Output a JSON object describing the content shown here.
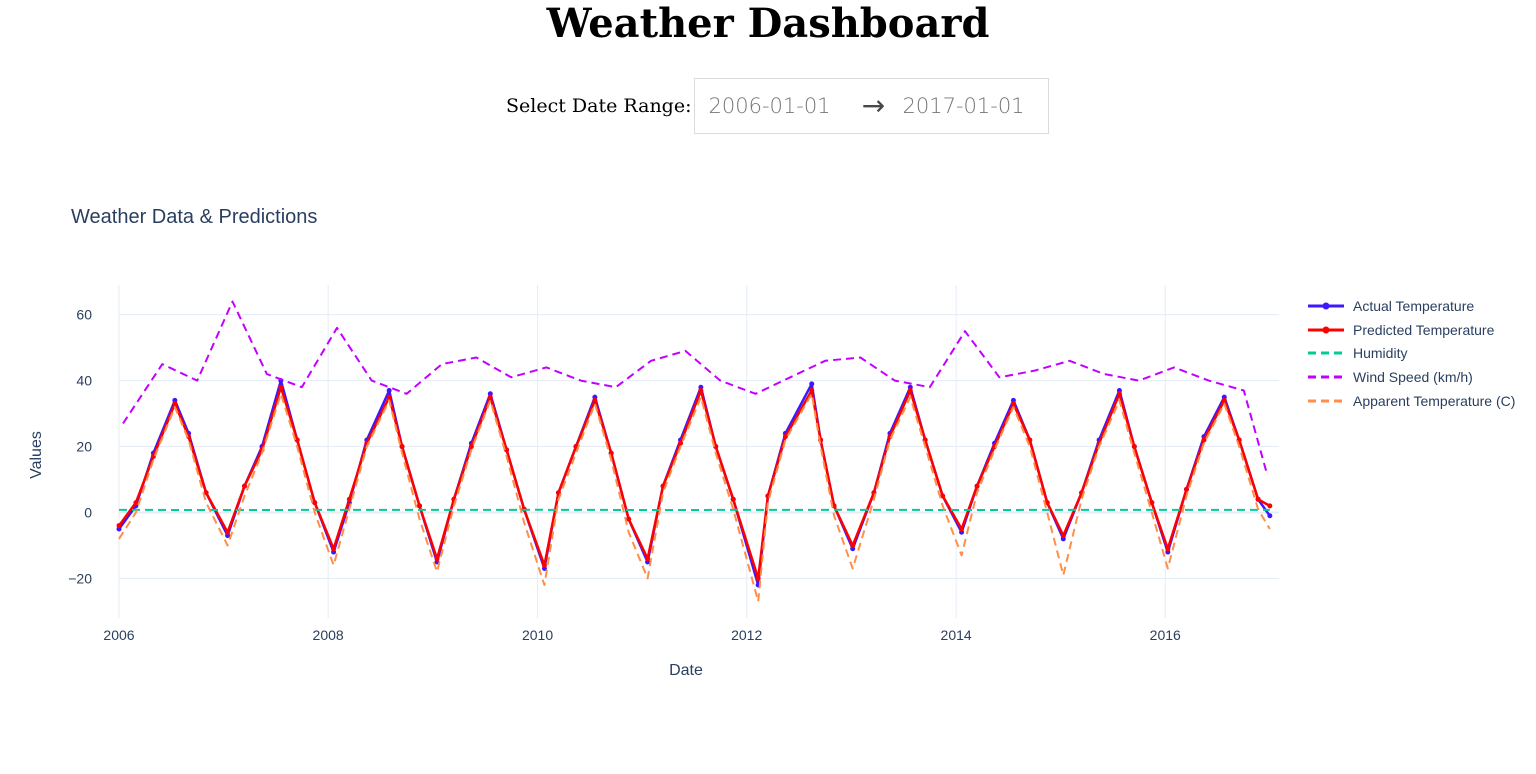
{
  "page": {
    "title": "Weather Dashboard"
  },
  "date_range": {
    "label": "Select Date Range:",
    "start": "2006-01-01",
    "end": "2017-01-01",
    "arrow": "→"
  },
  "chart_data": {
    "type": "line",
    "title": "Weather Data & Predictions",
    "xlabel": "Date",
    "ylabel": "Values",
    "xlim": [
      "2006-01-01",
      "2017-02-01"
    ],
    "ylim": [
      -32,
      69
    ],
    "x_ticks": [
      "2006",
      "2008",
      "2010",
      "2012",
      "2014",
      "2016"
    ],
    "y_ticks": [
      -20,
      0,
      20,
      40,
      60
    ],
    "grid": true,
    "legend_position": "right",
    "series": [
      {
        "name": "Actual Temperature",
        "color": "#3d17ff",
        "style": "solid-markers",
        "x": [
          "2006-01-01",
          "2006-03-01",
          "2006-05-01",
          "2006-07-15",
          "2006-09-01",
          "2006-11-01",
          "2007-01-15",
          "2007-03-15",
          "2007-05-15",
          "2007-07-20",
          "2007-09-15",
          "2007-11-15",
          "2008-01-20",
          "2008-03-15",
          "2008-05-15",
          "2008-08-01",
          "2008-09-15",
          "2008-11-15",
          "2009-01-15",
          "2009-03-15",
          "2009-05-15",
          "2009-07-20",
          "2009-09-15",
          "2009-11-15",
          "2010-01-25",
          "2010-03-15",
          "2010-05-15",
          "2010-07-20",
          "2010-09-15",
          "2010-11-15",
          "2011-01-20",
          "2011-03-15",
          "2011-05-15",
          "2011-07-25",
          "2011-09-15",
          "2011-11-15",
          "2012-02-10",
          "2012-03-15",
          "2012-05-15",
          "2012-08-15",
          "2012-09-15",
          "2012-11-01",
          "2013-01-05",
          "2013-03-20",
          "2013-05-15",
          "2013-07-25",
          "2013-09-15",
          "2013-11-15",
          "2014-01-20",
          "2014-03-15",
          "2014-05-15",
          "2014-07-20",
          "2014-09-15",
          "2014-11-15",
          "2015-01-10",
          "2015-03-15",
          "2015-05-15",
          "2015-07-25",
          "2015-09-15",
          "2015-11-15",
          "2016-01-10",
          "2016-03-15",
          "2016-05-15",
          "2016-07-25",
          "2016-09-15",
          "2016-11-20",
          "2016-12-31"
        ],
        "values": [
          -5,
          2,
          18,
          34,
          24,
          6,
          -7,
          8,
          20,
          40,
          22,
          3,
          -12,
          3,
          22,
          37,
          20,
          2,
          -15,
          4,
          21,
          36,
          19,
          1,
          -17,
          6,
          20,
          35,
          18,
          -2,
          -15,
          8,
          22,
          38,
          20,
          4,
          -22,
          5,
          24,
          39,
          22,
          2,
          -11,
          6,
          24,
          38,
          22,
          5,
          -6,
          8,
          21,
          34,
          22,
          3,
          -8,
          6,
          22,
          37,
          20,
          3,
          -12,
          7,
          23,
          35,
          22,
          4,
          -1
        ]
      },
      {
        "name": "Predicted Temperature",
        "color": "#ff0000",
        "style": "solid-markers",
        "x": [
          "2006-01-01",
          "2006-03-01",
          "2006-05-01",
          "2006-07-15",
          "2006-09-01",
          "2006-11-01",
          "2007-01-15",
          "2007-03-15",
          "2007-05-15",
          "2007-07-20",
          "2007-09-15",
          "2007-11-15",
          "2008-01-20",
          "2008-03-15",
          "2008-05-15",
          "2008-08-01",
          "2008-09-15",
          "2008-11-15",
          "2009-01-15",
          "2009-03-15",
          "2009-05-15",
          "2009-07-20",
          "2009-09-15",
          "2009-11-15",
          "2010-01-25",
          "2010-03-15",
          "2010-05-15",
          "2010-07-20",
          "2010-09-15",
          "2010-11-15",
          "2011-01-20",
          "2011-03-15",
          "2011-05-15",
          "2011-07-25",
          "2011-09-15",
          "2011-11-15",
          "2012-02-10",
          "2012-03-15",
          "2012-05-15",
          "2012-08-15",
          "2012-09-15",
          "2012-11-01",
          "2013-01-05",
          "2013-03-20",
          "2013-05-15",
          "2013-07-25",
          "2013-09-15",
          "2013-11-15",
          "2014-01-20",
          "2014-03-15",
          "2014-05-15",
          "2014-07-20",
          "2014-09-15",
          "2014-11-15",
          "2015-01-10",
          "2015-03-15",
          "2015-05-15",
          "2015-07-25",
          "2015-09-15",
          "2015-11-15",
          "2016-01-10",
          "2016-03-15",
          "2016-05-15",
          "2016-07-25",
          "2016-09-15",
          "2016-11-20",
          "2016-12-31"
        ],
        "values": [
          -4,
          3,
          17,
          33,
          23,
          6,
          -6,
          8,
          19,
          38,
          22,
          3,
          -11,
          4,
          21,
          35,
          20,
          2,
          -14,
          4,
          20,
          35,
          19,
          1,
          -16,
          6,
          20,
          34,
          18,
          -2,
          -14,
          8,
          21,
          37,
          20,
          4,
          -20,
          5,
          23,
          37,
          22,
          2,
          -10,
          6,
          23,
          37,
          22,
          5,
          -5,
          8,
          20,
          33,
          22,
          3,
          -7,
          6,
          21,
          36,
          20,
          3,
          -11,
          7,
          22,
          34,
          22,
          4,
          2
        ]
      },
      {
        "name": "Humidity",
        "color": "#00cc96",
        "style": "dash",
        "x": [
          "2006-01-01",
          "2007-01-01",
          "2008-01-01",
          "2009-01-01",
          "2010-01-01",
          "2011-01-01",
          "2012-01-01",
          "2013-01-01",
          "2014-01-01",
          "2015-01-01",
          "2016-01-01",
          "2016-12-31"
        ],
        "values": [
          0.8,
          0.75,
          0.78,
          0.8,
          0.82,
          0.76,
          0.79,
          0.81,
          0.77,
          0.8,
          0.78,
          0.8
        ]
      },
      {
        "name": "Wind Speed (km/h)",
        "color": "#c300ff",
        "style": "dash",
        "x": [
          "2006-01-15",
          "2006-06-01",
          "2006-10-01",
          "2007-02-01",
          "2007-06-01",
          "2007-10-01",
          "2008-02-01",
          "2008-06-01",
          "2008-10-01",
          "2009-02-01",
          "2009-06-01",
          "2009-10-01",
          "2010-02-01",
          "2010-06-01",
          "2010-10-01",
          "2011-02-01",
          "2011-06-01",
          "2011-10-01",
          "2012-02-01",
          "2012-06-01",
          "2012-10-01",
          "2013-02-01",
          "2013-06-01",
          "2013-10-01",
          "2014-02-01",
          "2014-06-01",
          "2014-10-01",
          "2015-02-01",
          "2015-06-01",
          "2015-10-01",
          "2016-02-01",
          "2016-06-01",
          "2016-10-01",
          "2016-12-20"
        ],
        "values": [
          27,
          45,
          40,
          64,
          42,
          38,
          56,
          40,
          36,
          45,
          47,
          41,
          44,
          40,
          38,
          46,
          49,
          40,
          36,
          41,
          46,
          47,
          40,
          38,
          55,
          41,
          43,
          46,
          42,
          40,
          44,
          40,
          37,
          12
        ]
      },
      {
        "name": "Apparent Temperature (C)",
        "color": "#ff8f48",
        "style": "dash",
        "x": [
          "2006-01-01",
          "2006-03-01",
          "2006-05-01",
          "2006-07-15",
          "2006-09-01",
          "2006-11-01",
          "2007-01-15",
          "2007-03-15",
          "2007-05-15",
          "2007-07-20",
          "2007-09-15",
          "2007-11-15",
          "2008-01-20",
          "2008-03-15",
          "2008-05-15",
          "2008-08-01",
          "2008-09-15",
          "2008-11-15",
          "2009-01-15",
          "2009-03-15",
          "2009-05-15",
          "2009-07-20",
          "2009-09-15",
          "2009-11-15",
          "2010-01-25",
          "2010-03-15",
          "2010-05-15",
          "2010-07-20",
          "2010-09-15",
          "2010-11-15",
          "2011-01-20",
          "2011-03-15",
          "2011-05-15",
          "2011-07-25",
          "2011-09-15",
          "2011-11-15",
          "2012-02-10",
          "2012-03-15",
          "2012-05-15",
          "2012-08-15",
          "2012-09-15",
          "2012-11-01",
          "2013-01-05",
          "2013-03-20",
          "2013-05-15",
          "2013-07-25",
          "2013-09-15",
          "2013-11-15",
          "2014-01-20",
          "2014-03-15",
          "2014-05-15",
          "2014-07-20",
          "2014-09-15",
          "2014-11-15",
          "2015-01-10",
          "2015-03-15",
          "2015-05-15",
          "2015-07-25",
          "2015-09-15",
          "2015-11-15",
          "2016-01-10",
          "2016-03-15",
          "2016-05-15",
          "2016-07-25",
          "2016-09-15",
          "2016-11-20",
          "2016-12-31"
        ],
        "values": [
          -8,
          0,
          16,
          32,
          22,
          3,
          -10,
          5,
          18,
          36,
          20,
          0,
          -16,
          1,
          20,
          34,
          18,
          -2,
          -18,
          2,
          19,
          34,
          17,
          -3,
          -22,
          4,
          18,
          33,
          16,
          -6,
          -20,
          6,
          20,
          35,
          18,
          1,
          -27,
          3,
          22,
          36,
          20,
          -1,
          -17,
          4,
          22,
          35,
          20,
          2,
          -13,
          6,
          19,
          32,
          20,
          0,
          -19,
          4,
          20,
          34,
          18,
          0,
          -17,
          5,
          21,
          33,
          20,
          1,
          -5
        ]
      }
    ]
  }
}
